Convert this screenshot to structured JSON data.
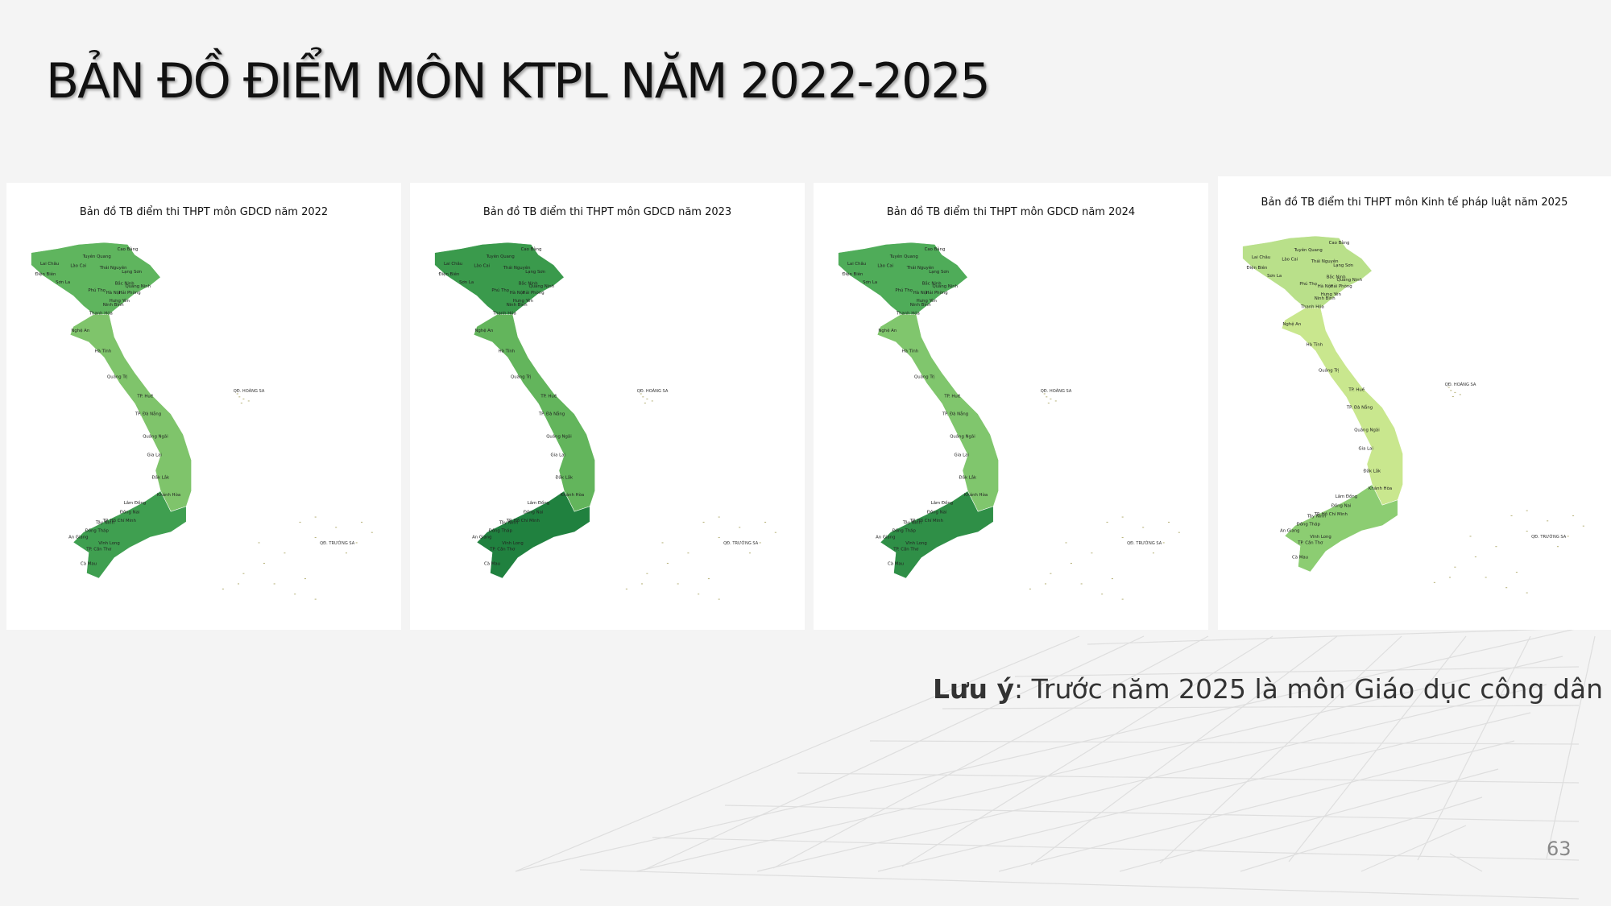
{
  "title": "BẢN ĐỒ ĐIỂM MÔN KTPL NĂM 2022-2025",
  "maps": [
    {
      "title": "Bản đồ TB điểm thi THPT môn GDCD năm 2022",
      "fills": [
        "#5fb55e",
        "#7fc46b",
        "#3f9f50"
      ]
    },
    {
      "title": "Bản đồ TB điểm thi THPT môn GDCD năm 2023",
      "fills": [
        "#3a9a4c",
        "#63b55c",
        "#20813f"
      ]
    },
    {
      "title": "Bản đồ TB điểm thi THPT môn GDCD năm 2024",
      "fills": [
        "#4fac59",
        "#80c66d",
        "#2f8f47"
      ]
    },
    {
      "title": "Bản đồ TB điểm thi THPT môn Kinh tế pháp luật năm 2025",
      "fills": [
        "#b9e08a",
        "#c9e78e",
        "#8ccd72"
      ]
    }
  ],
  "province_labels": [
    "Cao Bằng",
    "Tuyên Quang",
    "Lai Châu",
    "Lào Cai",
    "Thái Nguyên",
    "Điện Biên",
    "Lạng Sơn",
    "Sơn La",
    "Bắc Ninh",
    "Quảng Ninh",
    "Phú Thọ",
    "Hà Nội",
    "Hải Phòng",
    "Hưng Yên",
    "Ninh Bình",
    "Thanh Hóa",
    "Nghệ An",
    "Hà Tĩnh",
    "Quảng Trị",
    "TP. Huế",
    "TP. Đà Nẵng",
    "Quảng Ngãi",
    "Gia Lai",
    "Đắk Lắk",
    "Khánh Hòa",
    "Lâm Đồng",
    "Đồng Nai",
    "Tây Ninh",
    "TP. Hồ Chí Minh",
    "Đồng Tháp",
    "An Giang",
    "Vĩnh Long",
    "TP. Cần Thơ",
    "Cà Mau"
  ],
  "island_labels": [
    "QĐ. HOÀNG SA",
    "QĐ. TRƯỜNG SA"
  ],
  "note": {
    "label": "Lưu ý",
    "text": ": Trước năm 2025 là môn Giáo dục công dân"
  },
  "page_number": "63"
}
